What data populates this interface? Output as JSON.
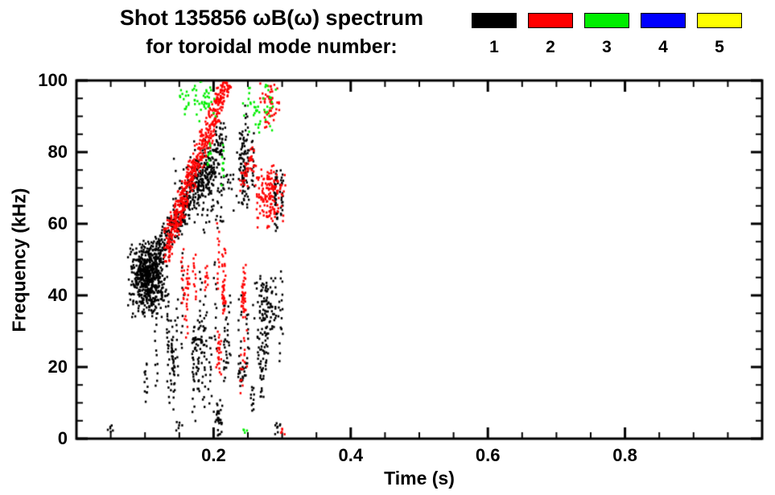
{
  "header": {
    "title_line1": "Shot 135856 ωB(ω) spectrum",
    "title_line2": "for toroidal mode number:"
  },
  "chart_data": {
    "type": "scatter",
    "title": "Shot 135856 ωB(ω) spectrum for toroidal mode number: 1 2 3 4 5",
    "xlabel": "Time (s)",
    "ylabel": "Frequency (kHz)",
    "xlim": [
      0,
      1.0
    ],
    "ylim": [
      0,
      100
    ],
    "xticks": [
      {
        "v": 0.2,
        "label": "0.2"
      },
      {
        "v": 0.4,
        "label": "0.4"
      },
      {
        "v": 0.6,
        "label": "0.6"
      },
      {
        "v": 0.8,
        "label": "0.8"
      }
    ],
    "yticks": [
      {
        "v": 0,
        "label": "0"
      },
      {
        "v": 20,
        "label": "20"
      },
      {
        "v": 40,
        "label": "40"
      },
      {
        "v": 60,
        "label": "60"
      },
      {
        "v": 80,
        "label": "80"
      },
      {
        "v": 100,
        "label": "100"
      }
    ],
    "x_minor": 0.05,
    "y_minor": 5,
    "grid": false,
    "legend_position": "top-right",
    "series": [
      {
        "name": "1",
        "color": "#000000",
        "clusters": [
          {
            "type": "blob",
            "t": [
              0.075,
              0.135
            ],
            "f": [
              33,
              56
            ],
            "n": 560
          },
          {
            "type": "ridge",
            "t": [
              0.09,
              0.215
            ],
            "f": [
              42,
              84
            ],
            "jt": 0.012,
            "jf": 10,
            "n": 460
          },
          {
            "type": "blob",
            "t": [
              0.135,
              0.245
            ],
            "f": [
              55,
              86
            ],
            "n": 170
          },
          {
            "type": "streaks",
            "t": [
              0.09,
              0.305
            ],
            "f": [
              4,
              42
            ],
            "cols": 26,
            "n": 300
          },
          {
            "type": "streaks",
            "t": [
              0.15,
              0.25
            ],
            "f": [
              12,
              35
            ],
            "cols": 8,
            "n": 90
          },
          {
            "type": "streaks",
            "t": [
              0.235,
              0.285
            ],
            "f": [
              60,
              86
            ],
            "cols": 6,
            "n": 110
          },
          {
            "type": "blob",
            "t": [
              0.255,
              0.3
            ],
            "f": [
              28,
              46
            ],
            "n": 90
          },
          {
            "type": "streaks",
            "t": [
              0.285,
              0.305
            ],
            "f": [
              58,
              76
            ],
            "cols": 3,
            "n": 60
          },
          {
            "type": "blob",
            "t": [
              0.2,
              0.215
            ],
            "f": [
              0,
              12
            ],
            "n": 30
          },
          {
            "type": "blob",
            "t": [
              0.045,
              0.055
            ],
            "f": [
              1,
              4
            ],
            "n": 6
          },
          {
            "type": "blob",
            "t": [
              0.14,
              0.155
            ],
            "f": [
              1,
              5
            ],
            "n": 6
          },
          {
            "type": "blob",
            "t": [
              0.285,
              0.298
            ],
            "f": [
              1,
              6
            ],
            "n": 8
          }
        ]
      },
      {
        "name": "2",
        "color": "#ff0000",
        "clusters": [
          {
            "type": "ridge",
            "t": [
              0.13,
              0.225
            ],
            "f": [
              53,
              103
            ],
            "jt": 0.01,
            "jf": 9,
            "n": 560
          },
          {
            "type": "streaks",
            "t": [
              0.155,
              0.255
            ],
            "f": [
              28,
              56
            ],
            "cols": 12,
            "n": 150
          },
          {
            "type": "blob",
            "t": [
              0.258,
              0.305
            ],
            "f": [
              58,
              78
            ],
            "n": 150
          },
          {
            "type": "blob",
            "t": [
              0.263,
              0.3
            ],
            "f": [
              86,
              102
            ],
            "n": 60
          },
          {
            "type": "streaks",
            "t": [
              0.205,
              0.25
            ],
            "f": [
              12,
              30
            ],
            "cols": 5,
            "n": 40
          },
          {
            "type": "ridge",
            "t": [
              0.24,
              0.26
            ],
            "f": [
              70,
              80
            ],
            "jt": 0.008,
            "jf": 6,
            "n": 40
          },
          {
            "type": "blob",
            "t": [
              0.295,
              0.305
            ],
            "f": [
              0,
              4
            ],
            "n": 5
          }
        ]
      },
      {
        "name": "3",
        "color": "#00ee00",
        "clusters": [
          {
            "type": "blob",
            "t": [
              0.15,
              0.168
            ],
            "f": [
              90,
              100
            ],
            "n": 14
          },
          {
            "type": "blob",
            "t": [
              0.165,
              0.205
            ],
            "f": [
              88,
              101
            ],
            "n": 40
          },
          {
            "type": "blob",
            "t": [
              0.24,
              0.3
            ],
            "f": [
              84,
              101
            ],
            "n": 45
          },
          {
            "type": "streaks",
            "t": [
              0.19,
              0.215
            ],
            "f": [
              70,
              88
            ],
            "cols": 2,
            "n": 18
          },
          {
            "type": "blob",
            "t": [
              0.24,
              0.25
            ],
            "f": [
              1,
              4
            ],
            "n": 4
          }
        ]
      },
      {
        "name": "4",
        "color": "#0000ff",
        "clusters": []
      },
      {
        "name": "5",
        "color": "#ffff00",
        "clusters": []
      }
    ]
  }
}
